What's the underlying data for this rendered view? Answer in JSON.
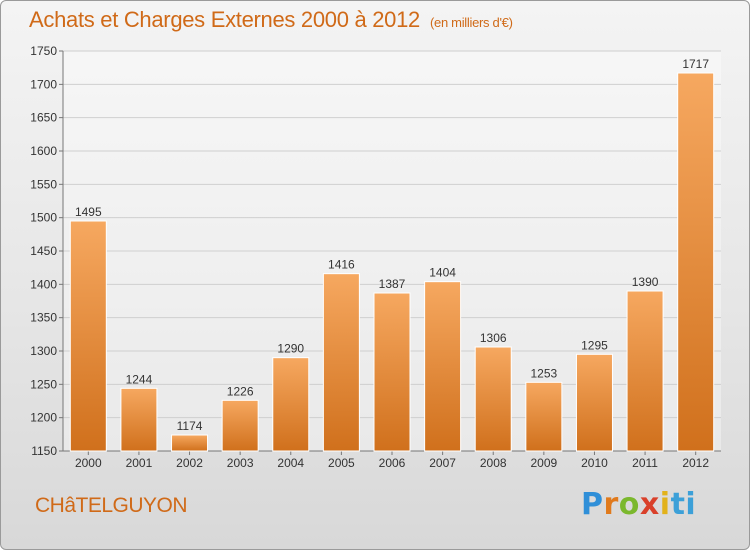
{
  "header": {
    "title": "Achats et Charges Externes 2000 à 2012",
    "subtitle": "(en milliers d'€)"
  },
  "footer": {
    "commune": "CHâTELGUYON",
    "brand": [
      "P",
      "r",
      "o",
      "x",
      "i",
      "t",
      "i"
    ]
  },
  "colors": {
    "accent": "#d06a18",
    "bar_light": "#f6a860",
    "bar_dark": "#d0701c"
  },
  "chart_data": {
    "type": "bar",
    "title": "Achats et Charges Externes 2000 à 2012",
    "subtitle": "(en milliers d'€)",
    "categories": [
      "2000",
      "2001",
      "2002",
      "2003",
      "2004",
      "2005",
      "2006",
      "2007",
      "2008",
      "2009",
      "2010",
      "2011",
      "2012"
    ],
    "values": [
      1495,
      1244,
      1174,
      1226,
      1290,
      1416,
      1387,
      1404,
      1306,
      1253,
      1295,
      1390,
      1717
    ],
    "ylim": [
      1150,
      1750
    ],
    "yticks": [
      1150,
      1200,
      1250,
      1300,
      1350,
      1400,
      1450,
      1500,
      1550,
      1600,
      1650,
      1700,
      1750
    ],
    "grid": true,
    "legend": "none",
    "data_labels": true
  }
}
